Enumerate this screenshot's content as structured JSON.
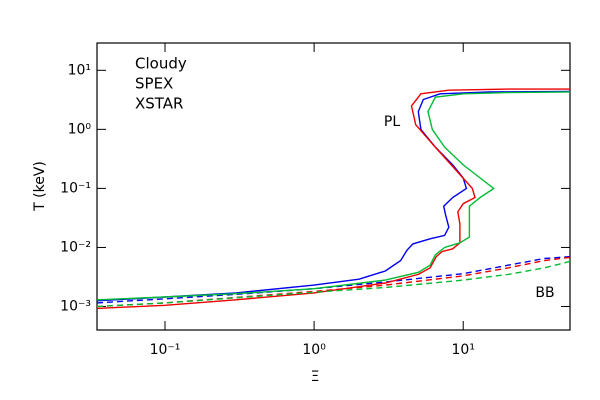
{
  "chart_data": {
    "type": "line",
    "xlabel": "Ξ",
    "ylabel": "T (keV)",
    "xscale": "log",
    "yscale": "log",
    "xlim": [
      0.035,
      52
    ],
    "ylim": [
      0.0004,
      29
    ],
    "xticks": [
      {
        "value": 0.1,
        "label": "10⁻¹"
      },
      {
        "value": 1,
        "label": "10⁰"
      },
      {
        "value": 10,
        "label": "10¹"
      }
    ],
    "yticks": [
      {
        "value": 0.001,
        "label": "10⁻³"
      },
      {
        "value": 0.01,
        "label": "10⁻²"
      },
      {
        "value": 0.1,
        "label": "10⁻¹"
      },
      {
        "value": 1,
        "label": "10⁰"
      },
      {
        "value": 10,
        "label": "10¹"
      }
    ],
    "grid": false,
    "legend": "upper left",
    "annotations": [
      {
        "text": "PL"
      },
      {
        "text": "BB"
      }
    ],
    "series": [
      {
        "name": "Cloudy",
        "color": "#0000ee",
        "pl": {
          "linestyle": "solid",
          "x": [
            0.035,
            0.1,
            0.3,
            1,
            2,
            3,
            3.8,
            4.2,
            4.6,
            6,
            7.5,
            8,
            7.6,
            7.4,
            8.5,
            10.5,
            10,
            8.5,
            6.5,
            5.2,
            5,
            5.4,
            7,
            15,
            52
          ],
          "values": [
            0.00125,
            0.00145,
            0.0017,
            0.0023,
            0.0029,
            0.004,
            0.006,
            0.009,
            0.0115,
            0.014,
            0.016,
            0.022,
            0.036,
            0.05,
            0.07,
            0.1,
            0.15,
            0.25,
            0.5,
            1.0,
            2,
            3.2,
            4,
            4.3,
            4.4
          ]
        },
        "bb": {
          "linestyle": "dashed",
          "x": [
            0.035,
            0.1,
            0.3,
            1,
            3,
            10,
            20,
            35,
            52
          ],
          "values": [
            0.00115,
            0.00135,
            0.0016,
            0.002,
            0.0026,
            0.0036,
            0.005,
            0.0065,
            0.007
          ]
        }
      },
      {
        "name": "SPEX",
        "color": "#ee0000",
        "pl": {
          "linestyle": "solid",
          "x": [
            0.035,
            0.1,
            0.3,
            1,
            3,
            5,
            6,
            6.6,
            7.2,
            8.5,
            9.5,
            9.5,
            9.2,
            10,
            12,
            11.5,
            9,
            6.5,
            4.8,
            4.5,
            5.2,
            8,
            20,
            52
          ],
          "values": [
            0.00093,
            0.00105,
            0.0013,
            0.0017,
            0.0025,
            0.0035,
            0.0045,
            0.007,
            0.0085,
            0.0095,
            0.012,
            0.025,
            0.04,
            0.055,
            0.07,
            0.1,
            0.2,
            0.5,
            1.2,
            2.5,
            4,
            4.6,
            4.8,
            4.8
          ]
        },
        "bb": {
          "linestyle": "dashed",
          "x": [
            0.035,
            0.1,
            1,
            3,
            10,
            20,
            35,
            52
          ],
          "values": [
            0.001,
            0.00115,
            0.0018,
            0.0023,
            0.0033,
            0.0045,
            0.006,
            0.0068
          ]
        }
      },
      {
        "name": "XSTAR",
        "color": "#00bb33",
        "pl": {
          "linestyle": "solid",
          "x": [
            0.035,
            0.1,
            0.3,
            1,
            3,
            5,
            6,
            6.5,
            7.5,
            9.5,
            11,
            11,
            11,
            13,
            16,
            13,
            10,
            7.5,
            6.2,
            5.8,
            6.5,
            10,
            20,
            52
          ],
          "values": [
            0.0013,
            0.00145,
            0.00165,
            0.002,
            0.0028,
            0.0038,
            0.005,
            0.0075,
            0.01,
            0.012,
            0.015,
            0.03,
            0.05,
            0.07,
            0.1,
            0.15,
            0.25,
            0.5,
            1,
            2,
            3.5,
            4,
            4.2,
            4.3
          ]
        },
        "bb": {
          "linestyle": "dashed",
          "x": [
            0.035,
            0.1,
            1,
            3,
            10,
            20,
            35,
            52
          ],
          "values": [
            0.001,
            0.00115,
            0.00175,
            0.0021,
            0.0028,
            0.0035,
            0.0045,
            0.0058
          ]
        }
      }
    ]
  }
}
